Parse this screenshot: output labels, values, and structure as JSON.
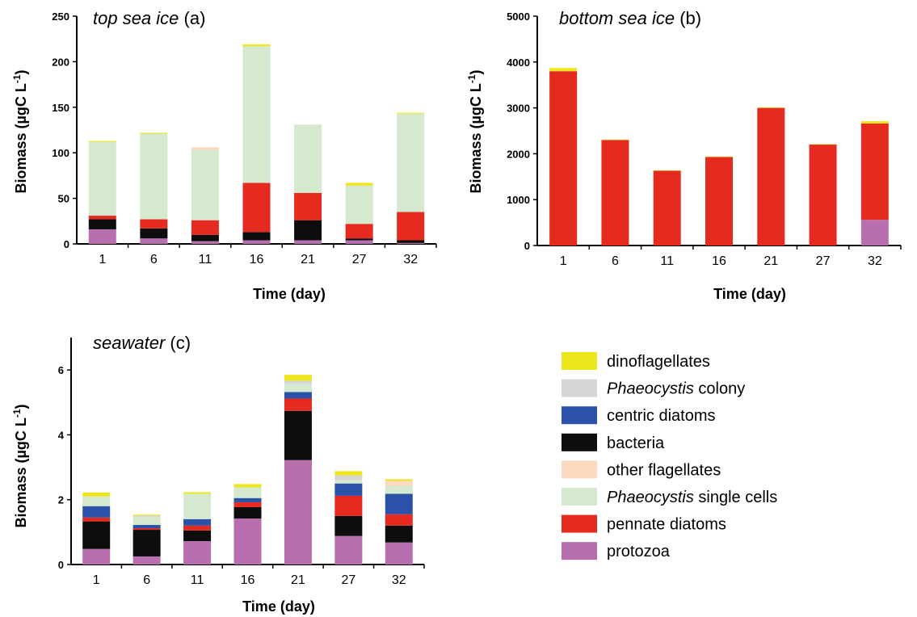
{
  "legend": [
    {
      "key": "dinoflagellates",
      "label": "dinoflagellates",
      "italic": "",
      "color": "#ede61c"
    },
    {
      "key": "phaeo_colony",
      "label": " colony",
      "italic": "Phaeocystis",
      "color": "#d6d6d6"
    },
    {
      "key": "centric",
      "label": "centric diatoms",
      "italic": "",
      "color": "#2a52a8"
    },
    {
      "key": "bacteria",
      "label": "bacteria",
      "italic": "",
      "color": "#0d0d0d"
    },
    {
      "key": "other_flag",
      "label": "other flagellates",
      "italic": "",
      "color": "#fcd9bf"
    },
    {
      "key": "phaeo_single",
      "label": " single cells",
      "italic": "Phaeocystis",
      "color": "#d5e9cf"
    },
    {
      "key": "pennate",
      "label": "pennate diatoms",
      "italic": "",
      "color": "#e52b1f"
    },
    {
      "key": "protozoa",
      "label": "protozoa",
      "italic": "",
      "color": "#b86fb0"
    }
  ],
  "chart_data": [
    {
      "type": "bar",
      "stacked": true,
      "title_italic": "top sea ice",
      "title_suffix": " (a)",
      "xlabel": "Time (day)",
      "ylabel": "Biomass (µgC L",
      "ylabel_sup": "-1",
      "ylabel_close": ")",
      "categories": [
        "1",
        "6",
        "11",
        "16",
        "21",
        "27",
        "32"
      ],
      "ylim": [
        0,
        250
      ],
      "yticks": [
        0,
        50,
        100,
        150,
        200,
        250
      ],
      "series": [
        {
          "key": "protozoa",
          "values": [
            16,
            6,
            3,
            4,
            4,
            4,
            1
          ]
        },
        {
          "key": "bacteria",
          "values": [
            11,
            11,
            7,
            9,
            22,
            2,
            3
          ]
        },
        {
          "key": "pennate",
          "values": [
            4,
            10,
            16,
            54,
            30,
            16,
            31
          ]
        },
        {
          "key": "phaeo_single",
          "values": [
            81,
            94,
            77,
            150,
            75,
            42,
            108
          ]
        },
        {
          "key": "other_flag",
          "values": [
            0,
            0,
            3,
            0,
            0,
            0,
            0
          ]
        },
        {
          "key": "centric",
          "values": [
            0,
            0,
            0,
            0,
            0,
            0,
            0
          ]
        },
        {
          "key": "phaeo_colony",
          "values": [
            0,
            0,
            0,
            0,
            0,
            0,
            0
          ]
        },
        {
          "key": "dinoflagellates",
          "values": [
            1,
            1,
            0,
            2,
            0,
            3,
            1
          ]
        }
      ]
    },
    {
      "type": "bar",
      "stacked": true,
      "title_italic": "bottom sea ice",
      "title_suffix": " (b)",
      "xlabel": "Time (day)",
      "ylabel": "Biomass (µgC L",
      "ylabel_sup": "-1",
      "ylabel_close": ")",
      "categories": [
        "1",
        "6",
        "11",
        "16",
        "21",
        "27",
        "32"
      ],
      "ylim": [
        0,
        5000
      ],
      "yticks": [
        0,
        1000,
        2000,
        3000,
        4000,
        5000
      ],
      "series": [
        {
          "key": "protozoa",
          "values": [
            0,
            0,
            0,
            0,
            0,
            0,
            560
          ]
        },
        {
          "key": "bacteria",
          "values": [
            0,
            0,
            0,
            0,
            0,
            0,
            0
          ]
        },
        {
          "key": "pennate",
          "values": [
            3800,
            2300,
            1630,
            1930,
            3000,
            2200,
            2100
          ]
        },
        {
          "key": "phaeo_single",
          "values": [
            0,
            0,
            0,
            0,
            0,
            0,
            0
          ]
        },
        {
          "key": "other_flag",
          "values": [
            0,
            0,
            0,
            0,
            0,
            0,
            0
          ]
        },
        {
          "key": "centric",
          "values": [
            0,
            0,
            0,
            0,
            0,
            0,
            0
          ]
        },
        {
          "key": "phaeo_colony",
          "values": [
            0,
            0,
            0,
            0,
            0,
            0,
            0
          ]
        },
        {
          "key": "dinoflagellates",
          "values": [
            70,
            10,
            10,
            10,
            10,
            10,
            50
          ]
        }
      ]
    },
    {
      "type": "bar",
      "stacked": true,
      "title_italic": "seawater",
      "title_suffix": " (c)",
      "xlabel": "Time (day)",
      "ylabel": "Biomass (µgC L",
      "ylabel_sup": "-1",
      "ylabel_close": ")",
      "categories": [
        "1",
        "6",
        "11",
        "16",
        "21",
        "27",
        "32"
      ],
      "ylim": [
        0,
        7
      ],
      "yticks": [
        0,
        2,
        4,
        6
      ],
      "series": [
        {
          "key": "protozoa",
          "values": [
            0.48,
            0.25,
            0.72,
            1.42,
            3.22,
            0.88,
            0.68
          ]
        },
        {
          "key": "bacteria",
          "values": [
            0.85,
            0.82,
            0.33,
            0.35,
            1.52,
            0.62,
            0.52
          ]
        },
        {
          "key": "pennate",
          "values": [
            0.12,
            0.05,
            0.15,
            0.15,
            0.38,
            0.62,
            0.35
          ]
        },
        {
          "key": "centric",
          "values": [
            0.35,
            0.1,
            0.2,
            0.13,
            0.2,
            0.38,
            0.63
          ]
        },
        {
          "key": "phaeo_single",
          "values": [
            0.3,
            0.25,
            0.78,
            0.33,
            0.25,
            0.1,
            0.25
          ]
        },
        {
          "key": "other_flag",
          "values": [
            0,
            0,
            0,
            0,
            0,
            0,
            0.15
          ]
        },
        {
          "key": "phaeo_colony",
          "values": [
            0,
            0.04,
            0,
            0,
            0.1,
            0.15,
            0.0
          ]
        },
        {
          "key": "dinoflagellates",
          "values": [
            0.12,
            0.03,
            0.05,
            0.1,
            0.18,
            0.13,
            0.05
          ]
        }
      ]
    }
  ]
}
